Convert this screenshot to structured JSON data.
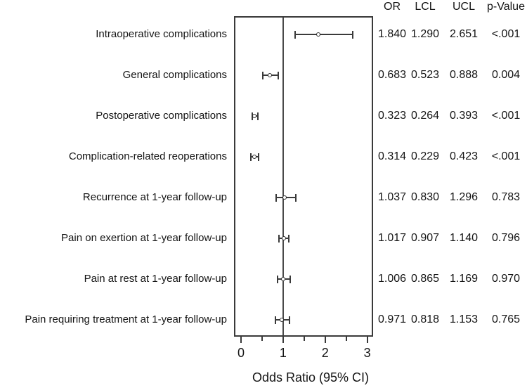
{
  "chart_data": {
    "type": "scatter",
    "subtype": "forest-plot",
    "title": "",
    "xlabel": "Odds Ratio (95% CI)",
    "ylabel": "",
    "xlim": [
      0,
      3.2
    ],
    "x_ticks": [
      0,
      1,
      2,
      3
    ],
    "x_minor_ticks": [
      0.5,
      1.5,
      2.5
    ],
    "reference_line_x": 1,
    "grid": false,
    "legend_position": "none",
    "columns": [
      "OR",
      "LCL",
      "UCL",
      "p-Value"
    ],
    "rows": [
      {
        "label": "Intraoperative complications",
        "or": "1.840",
        "lcl": "1.290",
        "ucl": "2.651",
        "p": "<.001"
      },
      {
        "label": "General complications",
        "or": "0.683",
        "lcl": "0.523",
        "ucl": "0.888",
        "p": "0.004"
      },
      {
        "label": "Postoperative complications",
        "or": "0.323",
        "lcl": "0.264",
        "ucl": "0.393",
        "p": "<.001"
      },
      {
        "label": "Complication-related reoperations",
        "or": "0.314",
        "lcl": "0.229",
        "ucl": "0.423",
        "p": "<.001"
      },
      {
        "label": "Recurrence at 1-year follow-up",
        "or": "1.037",
        "lcl": "0.830",
        "ucl": "1.296",
        "p": "0.783"
      },
      {
        "label": "Pain on exertion at 1-year follow-up",
        "or": "1.017",
        "lcl": "0.907",
        "ucl": "1.140",
        "p": "0.796"
      },
      {
        "label": "Pain at rest at 1-year follow-up",
        "or": "1.006",
        "lcl": "0.865",
        "ucl": "1.169",
        "p": "0.970"
      },
      {
        "label": "Pain requiring treatment at 1-year follow-up",
        "or": "0.971",
        "lcl": "0.818",
        "ucl": "1.153",
        "p": "0.765"
      }
    ],
    "colors": {
      "line": "#3a3a3a",
      "text": "#141414",
      "marker_fill": "#ffffff",
      "background": "#ffffff"
    }
  }
}
